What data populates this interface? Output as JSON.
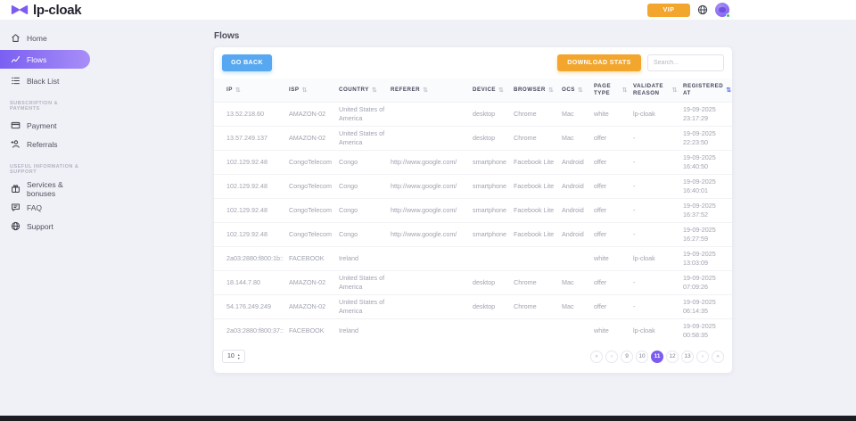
{
  "brand": {
    "name": "lp-cloak"
  },
  "topbar": {
    "vip_label": "VIP"
  },
  "sidebar": {
    "sections": [
      {
        "label": "",
        "items": [
          {
            "label": "Home"
          },
          {
            "label": "Flows",
            "active": true
          },
          {
            "label": "Black List"
          }
        ]
      },
      {
        "label": "SUBSCRIPTION & PAYMENTS",
        "items": [
          {
            "label": "Payment"
          },
          {
            "label": "Referrals"
          }
        ]
      },
      {
        "label": "USEFUL INFORMATION & SUPPORT",
        "items": [
          {
            "label": "Services & bonuses"
          },
          {
            "label": "FAQ"
          },
          {
            "label": "Support"
          }
        ]
      }
    ]
  },
  "page": {
    "title": "Flows"
  },
  "toolbar": {
    "go_back_label": "GO BACK",
    "download_stats_label": "DOWNLOAD STATS",
    "search_placeholder": "Search..."
  },
  "table": {
    "columns": [
      {
        "key": "ip",
        "label": "IP"
      },
      {
        "key": "isp",
        "label": "ISP"
      },
      {
        "key": "country",
        "label": "COUNTRY"
      },
      {
        "key": "referer",
        "label": "REFERER"
      },
      {
        "key": "device",
        "label": "DEVICE"
      },
      {
        "key": "browser",
        "label": "BROWSER"
      },
      {
        "key": "ocs",
        "label": "OCS"
      },
      {
        "key": "page_type",
        "label": "PAGE TYPE"
      },
      {
        "key": "validate_reason",
        "label": "VALIDATE REASON"
      },
      {
        "key": "registered_at",
        "label": "REGISTERED AT",
        "sort_active": true
      }
    ],
    "rows": [
      {
        "ip": "13.52.218.60",
        "isp": "AMAZON-02",
        "country": "United States of America",
        "referer": "",
        "device": "desktop",
        "browser": "Chrome",
        "ocs": "Mac",
        "page_type": "white",
        "validate_reason": "lp-cloak",
        "registered_date": "19-09-2025",
        "registered_time": "23:17:29"
      },
      {
        "ip": "13.57.249.137",
        "isp": "AMAZON-02",
        "country": "United States of America",
        "referer": "",
        "device": "desktop",
        "browser": "Chrome",
        "ocs": "Mac",
        "page_type": "offer",
        "validate_reason": "-",
        "registered_date": "19-09-2025",
        "registered_time": "22:23:50"
      },
      {
        "ip": "102.129.92.48",
        "isp": "CongoTelecom",
        "country": "Congo",
        "referer": "http://www.google.com/",
        "device": "smartphone",
        "browser": "Facebook Lite",
        "ocs": "Android",
        "page_type": "offer",
        "validate_reason": "-",
        "registered_date": "19-09-2025",
        "registered_time": "16:40:50"
      },
      {
        "ip": "102.129.92.48",
        "isp": "CongoTelecom",
        "country": "Congo",
        "referer": "http://www.google.com/",
        "device": "smartphone",
        "browser": "Facebook Lite",
        "ocs": "Android",
        "page_type": "offer",
        "validate_reason": "-",
        "registered_date": "19-09-2025",
        "registered_time": "16:40:01"
      },
      {
        "ip": "102.129.92.48",
        "isp": "CongoTelecom",
        "country": "Congo",
        "referer": "http://www.google.com/",
        "device": "smartphone",
        "browser": "Facebook Lite",
        "ocs": "Android",
        "page_type": "offer",
        "validate_reason": "-",
        "registered_date": "19-09-2025",
        "registered_time": "16:37:52"
      },
      {
        "ip": "102.129.92.48",
        "isp": "CongoTelecom",
        "country": "Congo",
        "referer": "http://www.google.com/",
        "device": "smartphone",
        "browser": "Facebook Lite",
        "ocs": "Android",
        "page_type": "offer",
        "validate_reason": "-",
        "registered_date": "19-09-2025",
        "registered_time": "16:27:59"
      },
      {
        "ip": "2a03:2880:f800:1b::",
        "isp": "FACEBOOK",
        "country": "Ireland",
        "referer": "",
        "device": "",
        "browser": "",
        "ocs": "",
        "page_type": "white",
        "validate_reason": "lp-cloak",
        "registered_date": "19-09-2025",
        "registered_time": "13:03:09"
      },
      {
        "ip": "18.144.7.80",
        "isp": "AMAZON-02",
        "country": "United States of America",
        "referer": "",
        "device": "desktop",
        "browser": "Chrome",
        "ocs": "Mac",
        "page_type": "offer",
        "validate_reason": "-",
        "registered_date": "19-09-2025",
        "registered_time": "07:09:26"
      },
      {
        "ip": "54.176.249.249",
        "isp": "AMAZON-02",
        "country": "United States of America",
        "referer": "",
        "device": "desktop",
        "browser": "Chrome",
        "ocs": "Mac",
        "page_type": "offer",
        "validate_reason": "-",
        "registered_date": "19-09-2025",
        "registered_time": "06:14:35"
      },
      {
        "ip": "2a03:2880:f800:37::",
        "isp": "FACEBOOK",
        "country": "Ireland",
        "referer": "",
        "device": "",
        "browser": "",
        "ocs": "",
        "page_type": "white",
        "validate_reason": "lp-cloak",
        "registered_date": "19-09-2025",
        "registered_time": "00:58:35"
      }
    ]
  },
  "pagination": {
    "page_size": "10",
    "buttons": [
      "«",
      "‹",
      "9",
      "10",
      "11",
      "12",
      "13",
      "›",
      "»"
    ],
    "active": "11"
  },
  "colors": {
    "accent": "#7c5cf0",
    "grad1": "#7b5ff2",
    "grad2": "#a78ef7",
    "amber": "#f2a62e",
    "blue": "#57a8f1",
    "green": "#34c26e",
    "sort_active": "#5a6cf0"
  }
}
